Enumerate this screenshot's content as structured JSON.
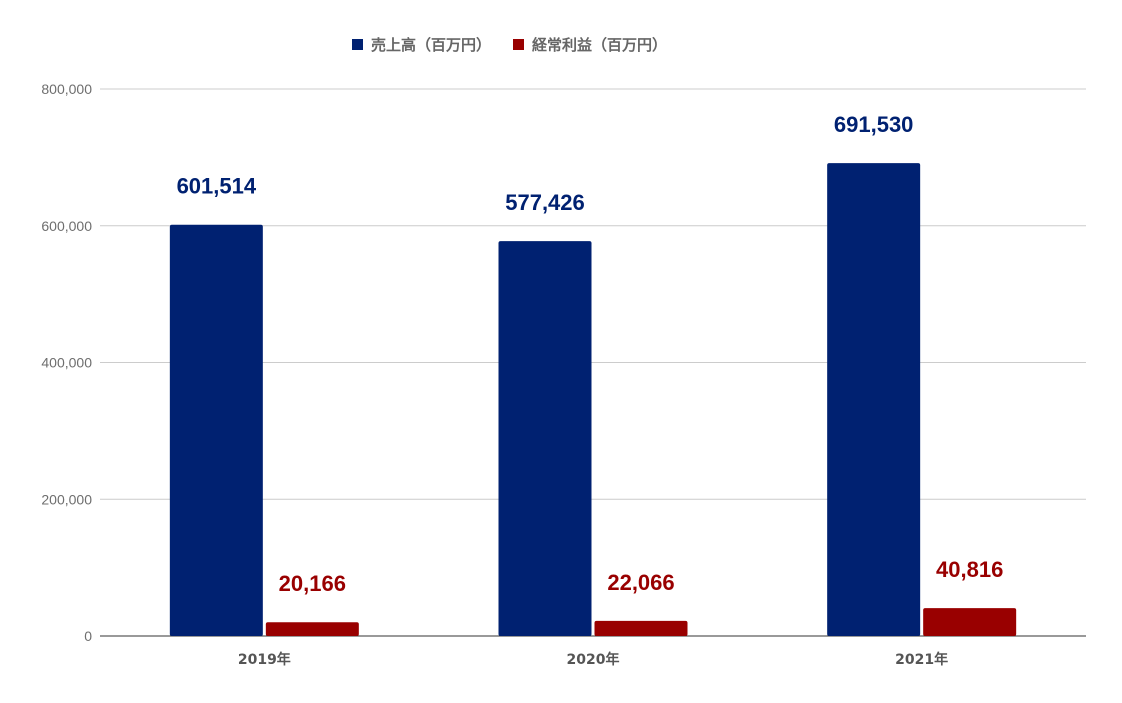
{
  "chart_data": {
    "type": "bar",
    "categories": [
      "2019年",
      "2020年",
      "2021年"
    ],
    "series": [
      {
        "name": "売上高（百万円）",
        "values": [
          601514,
          577426,
          691530
        ],
        "color": "#002171",
        "value_labels": [
          "601,514",
          "577,426",
          "691,530"
        ]
      },
      {
        "name": "経常利益（百万円）",
        "values": [
          20166,
          22066,
          40816
        ],
        "color": "#990000",
        "value_labels": [
          "20,166",
          "22,066",
          "40,816"
        ]
      }
    ],
    "ylim": [
      0,
      800000
    ],
    "yticks": [
      0,
      200000,
      400000,
      600000,
      800000
    ],
    "ytick_labels": [
      "0",
      "200,000",
      "400,000",
      "600,000",
      "800,000"
    ],
    "grid": true,
    "legend_position": "top"
  }
}
